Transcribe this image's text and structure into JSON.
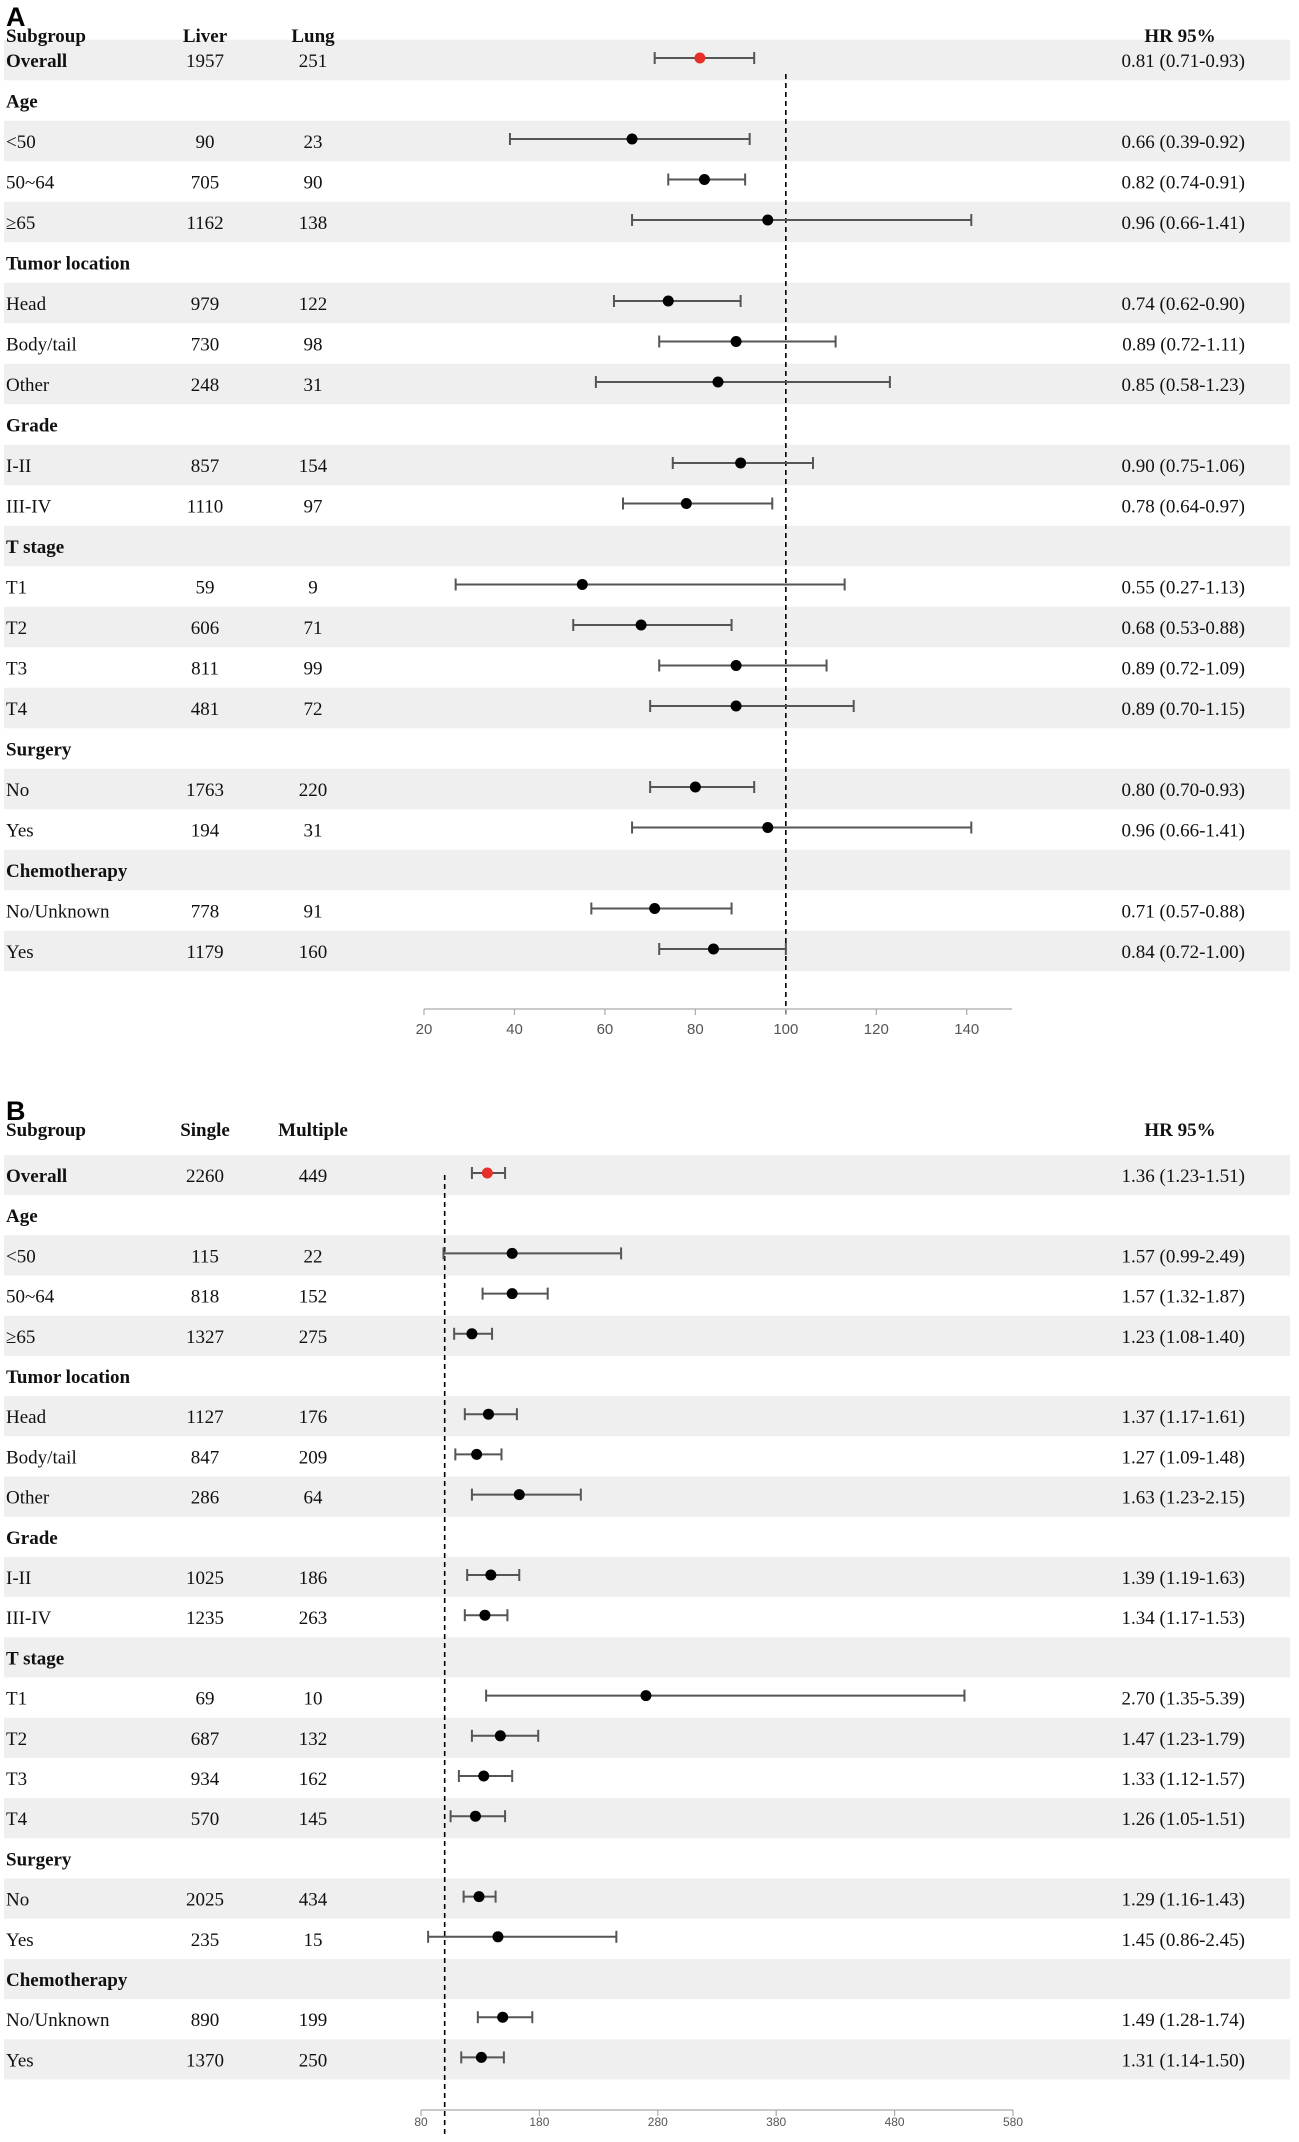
{
  "chart_data": [
    {
      "type": "forest",
      "panel_label": "A",
      "columns": [
        "Subgroup",
        "Liver",
        "Lung"
      ],
      "hr_header": "HR 95%",
      "reference_line": 100,
      "axis": {
        "ticks": [
          20,
          40,
          60,
          80,
          100,
          120,
          140
        ],
        "range": [
          20,
          150
        ]
      },
      "rows": [
        {
          "label": "Overall",
          "bold": true,
          "n1": "1957",
          "n2": "251",
          "hr": 0.81,
          "lo": 0.71,
          "hi": 0.93,
          "ci_text": "0.81 (0.71-0.93)",
          "highlight": true
        },
        {
          "label": "Age",
          "header": true
        },
        {
          "label": "<50",
          "n1": "90",
          "n2": "23",
          "hr": 0.66,
          "lo": 0.39,
          "hi": 0.92,
          "ci_text": "0.66 (0.39-0.92)"
        },
        {
          "label": "50~64",
          "n1": "705",
          "n2": "90",
          "hr": 0.82,
          "lo": 0.74,
          "hi": 0.91,
          "ci_text": "0.82 (0.74-0.91)"
        },
        {
          "label": "≥65",
          "n1": "1162",
          "n2": "138",
          "hr": 0.96,
          "lo": 0.66,
          "hi": 1.41,
          "ci_text": "0.96 (0.66-1.41)"
        },
        {
          "label": "Tumor location",
          "header": true
        },
        {
          "label": "Head",
          "n1": "979",
          "n2": "122",
          "hr": 0.74,
          "lo": 0.62,
          "hi": 0.9,
          "ci_text": "0.74 (0.62-0.90)"
        },
        {
          "label": "Body/tail",
          "n1": "730",
          "n2": "98",
          "hr": 0.89,
          "lo": 0.72,
          "hi": 1.11,
          "ci_text": "0.89 (0.72-1.11)"
        },
        {
          "label": "Other",
          "n1": "248",
          "n2": "31",
          "hr": 0.85,
          "lo": 0.58,
          "hi": 1.23,
          "ci_text": "0.85 (0.58-1.23)"
        },
        {
          "label": "Grade",
          "header": true
        },
        {
          "label": "I-II",
          "n1": "857",
          "n2": "154",
          "hr": 0.9,
          "lo": 0.75,
          "hi": 1.06,
          "ci_text": "0.90 (0.75-1.06)"
        },
        {
          "label": "III-IV",
          "n1": "1110",
          "n2": "97",
          "hr": 0.78,
          "lo": 0.64,
          "hi": 0.97,
          "ci_text": "0.78 (0.64-0.97)"
        },
        {
          "label": "T stage",
          "header": true
        },
        {
          "label": "T1",
          "n1": "59",
          "n2": "9",
          "hr": 0.55,
          "lo": 0.27,
          "hi": 1.13,
          "ci_text": "0.55 (0.27-1.13)"
        },
        {
          "label": "T2",
          "n1": "606",
          "n2": "71",
          "hr": 0.68,
          "lo": 0.53,
          "hi": 0.88,
          "ci_text": "0.68 (0.53-0.88)"
        },
        {
          "label": "T3",
          "n1": "811",
          "n2": "99",
          "hr": 0.89,
          "lo": 0.72,
          "hi": 1.09,
          "ci_text": "0.89 (0.72-1.09)"
        },
        {
          "label": "T4",
          "n1": "481",
          "n2": "72",
          "hr": 0.89,
          "lo": 0.7,
          "hi": 1.15,
          "ci_text": "0.89 (0.70-1.15)"
        },
        {
          "label": "Surgery",
          "header": true
        },
        {
          "label": "No",
          "n1": "1763",
          "n2": "220",
          "hr": 0.8,
          "lo": 0.7,
          "hi": 0.93,
          "ci_text": "0.80 (0.70-0.93)"
        },
        {
          "label": "Yes",
          "n1": "194",
          "n2": "31",
          "hr": 0.96,
          "lo": 0.66,
          "hi": 1.41,
          "ci_text": "0.96 (0.66-1.41)"
        },
        {
          "label": "Chemotherapy",
          "header": true
        },
        {
          "label": "No/Unknown",
          "n1": "778",
          "n2": "91",
          "hr": 0.71,
          "lo": 0.57,
          "hi": 0.88,
          "ci_text": "0.71 (0.57-0.88)"
        },
        {
          "label": "Yes",
          "n1": "1179",
          "n2": "160",
          "hr": 0.84,
          "lo": 0.72,
          "hi": 1.0,
          "ci_text": "0.84 (0.72-1.00)"
        }
      ]
    },
    {
      "type": "forest",
      "panel_label": "B",
      "columns": [
        "Subgroup",
        "Single",
        "Multiple"
      ],
      "hr_header": "HR 95%",
      "reference_line": 100,
      "axis": {
        "ticks": [
          80,
          180,
          280,
          380,
          480,
          580
        ],
        "range": [
          80,
          580
        ]
      },
      "rows": [
        {
          "label": "Overall",
          "bold": true,
          "n1": "2260",
          "n2": "449",
          "hr": 1.36,
          "lo": 1.23,
          "hi": 1.51,
          "ci_text": "1.36 (1.23-1.51)",
          "highlight": true
        },
        {
          "label": "Age",
          "header": true
        },
        {
          "label": "<50",
          "n1": "115",
          "n2": "22",
          "hr": 1.57,
          "lo": 0.99,
          "hi": 2.49,
          "ci_text": "1.57 (0.99-2.49)"
        },
        {
          "label": "50~64",
          "n1": "818",
          "n2": "152",
          "hr": 1.57,
          "lo": 1.32,
          "hi": 1.87,
          "ci_text": "1.57 (1.32-1.87)"
        },
        {
          "label": "≥65",
          "n1": "1327",
          "n2": "275",
          "hr": 1.23,
          "lo": 1.08,
          "hi": 1.4,
          "ci_text": "1.23 (1.08-1.40)"
        },
        {
          "label": "Tumor location",
          "header": true
        },
        {
          "label": "Head",
          "n1": "1127",
          "n2": "176",
          "hr": 1.37,
          "lo": 1.17,
          "hi": 1.61,
          "ci_text": "1.37 (1.17-1.61)"
        },
        {
          "label": "Body/tail",
          "n1": "847",
          "n2": "209",
          "hr": 1.27,
          "lo": 1.09,
          "hi": 1.48,
          "ci_text": "1.27 (1.09-1.48)"
        },
        {
          "label": "Other",
          "n1": "286",
          "n2": "64",
          "hr": 1.63,
          "lo": 1.23,
          "hi": 2.15,
          "ci_text": "1.63 (1.23-2.15)"
        },
        {
          "label": "Grade",
          "header": true
        },
        {
          "label": "I-II",
          "n1": "1025",
          "n2": "186",
          "hr": 1.39,
          "lo": 1.19,
          "hi": 1.63,
          "ci_text": "1.39 (1.19-1.63)"
        },
        {
          "label": "III-IV",
          "n1": "1235",
          "n2": "263",
          "hr": 1.34,
          "lo": 1.17,
          "hi": 1.53,
          "ci_text": "1.34 (1.17-1.53)"
        },
        {
          "label": "T stage",
          "header": true
        },
        {
          "label": "T1",
          "n1": "69",
          "n2": "10",
          "hr": 2.7,
          "lo": 1.35,
          "hi": 5.39,
          "ci_text": "2.70 (1.35-5.39)"
        },
        {
          "label": "T2",
          "n1": "687",
          "n2": "132",
          "hr": 1.47,
          "lo": 1.23,
          "hi": 1.79,
          "ci_text": "1.47 (1.23-1.79)"
        },
        {
          "label": "T3",
          "n1": "934",
          "n2": "162",
          "hr": 1.33,
          "lo": 1.12,
          "hi": 1.57,
          "ci_text": "1.33 (1.12-1.57)"
        },
        {
          "label": "T4",
          "n1": "570",
          "n2": "145",
          "hr": 1.26,
          "lo": 1.05,
          "hi": 1.51,
          "ci_text": "1.26 (1.05-1.51)"
        },
        {
          "label": "Surgery",
          "header": true
        },
        {
          "label": "No",
          "n1": "2025",
          "n2": "434",
          "hr": 1.29,
          "lo": 1.16,
          "hi": 1.43,
          "ci_text": "1.29 (1.16-1.43)"
        },
        {
          "label": "Yes",
          "n1": "235",
          "n2": "15",
          "hr": 1.45,
          "lo": 0.86,
          "hi": 2.45,
          "ci_text": "1.45 (0.86-2.45)"
        },
        {
          "label": "Chemotherapy",
          "header": true
        },
        {
          "label": "No/Unknown",
          "n1": "890",
          "n2": "199",
          "hr": 1.49,
          "lo": 1.28,
          "hi": 1.74,
          "ci_text": "1.49 (1.28-1.74)"
        },
        {
          "label": "Yes",
          "n1": "1370",
          "n2": "250",
          "hr": 1.31,
          "lo": 1.14,
          "hi": 1.5,
          "ci_text": "1.31 (1.14-1.50)"
        }
      ]
    }
  ],
  "colors": {
    "stripe": "#efefef",
    "marker": "#000000",
    "overall_marker": "#e8302a",
    "ci_line": "#555555",
    "axis": "#aaaaaa",
    "tick_label": "#555555",
    "ref_line": "#000000"
  }
}
